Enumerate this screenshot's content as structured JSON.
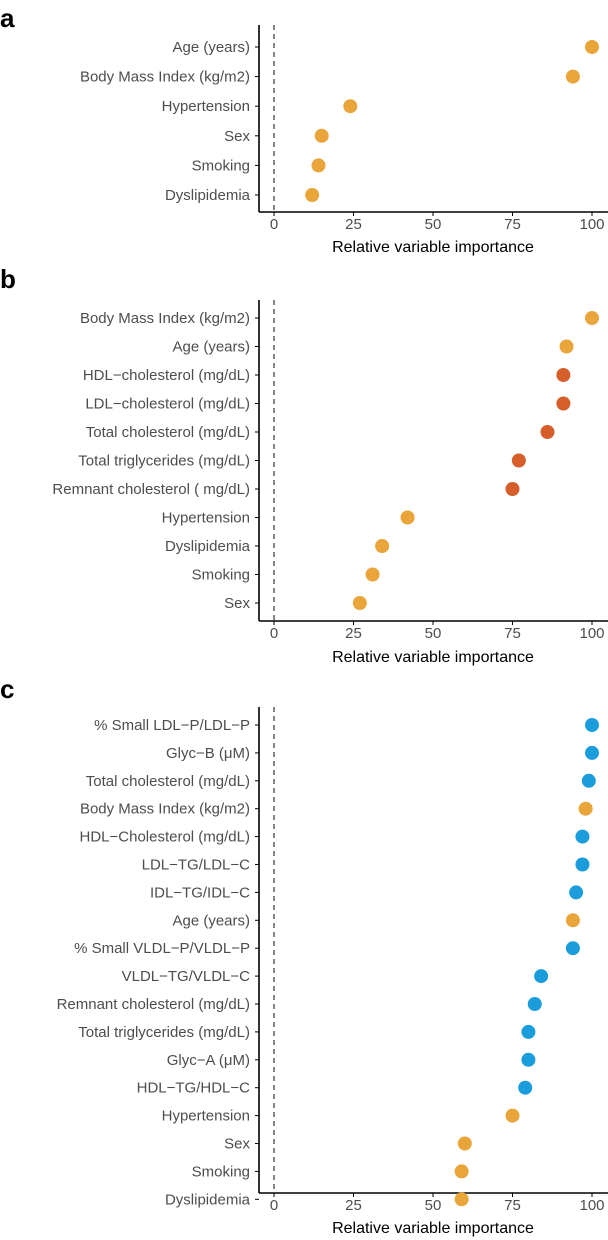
{
  "colors": {
    "demographic": "#E9A43A",
    "lipid": "#D55E2A",
    "nmr": "#1B9DDB"
  },
  "chart_data": [
    {
      "panel": "a",
      "type": "scatter",
      "xlabel": "Relative variable importance",
      "xlim": [
        0,
        100
      ],
      "xticks": [
        "0",
        "25",
        "50",
        "75",
        "100"
      ],
      "reference_line": 0,
      "points": [
        {
          "label": "Age (years)",
          "value": 100,
          "group": "demographic"
        },
        {
          "label": "Body Mass Index (kg/m2)",
          "value": 94,
          "group": "demographic"
        },
        {
          "label": "Hypertension",
          "value": 24,
          "group": "demographic"
        },
        {
          "label": "Sex",
          "value": 15,
          "group": "demographic"
        },
        {
          "label": "Smoking",
          "value": 14,
          "group": "demographic"
        },
        {
          "label": "Dyslipidemia",
          "value": 12,
          "group": "demographic"
        }
      ]
    },
    {
      "panel": "b",
      "type": "scatter",
      "xlabel": "Relative variable importance",
      "xlim": [
        0,
        100
      ],
      "xticks": [
        "0",
        "25",
        "50",
        "75",
        "100"
      ],
      "reference_line": 0,
      "points": [
        {
          "label": "Body Mass Index (kg/m2)",
          "value": 100,
          "group": "demographic"
        },
        {
          "label": "Age (years)",
          "value": 92,
          "group": "demographic"
        },
        {
          "label": "HDL−cholesterol (mg/dL)",
          "value": 91,
          "group": "lipid"
        },
        {
          "label": "LDL−cholesterol (mg/dL)",
          "value": 91,
          "group": "lipid"
        },
        {
          "label": "Total cholesterol (mg/dL)",
          "value": 86,
          "group": "lipid"
        },
        {
          "label": "Total triglycerides (mg/dL)",
          "value": 77,
          "group": "lipid"
        },
        {
          "label": "Remnant cholesterol ( mg/dL)",
          "value": 75,
          "group": "lipid"
        },
        {
          "label": "Hypertension",
          "value": 42,
          "group": "demographic"
        },
        {
          "label": "Dyslipidemia",
          "value": 34,
          "group": "demographic"
        },
        {
          "label": "Smoking",
          "value": 31,
          "group": "demographic"
        },
        {
          "label": "Sex",
          "value": 27,
          "group": "demographic"
        }
      ]
    },
    {
      "panel": "c",
      "type": "scatter",
      "xlabel": "Relative variable importance",
      "xlim": [
        0,
        100
      ],
      "xticks": [
        "0",
        "25",
        "50",
        "75",
        "100"
      ],
      "reference_line": 0,
      "points": [
        {
          "label": "% Small LDL−P/LDL−P",
          "value": 100,
          "group": "nmr"
        },
        {
          "label": "Glyc−B (μM)",
          "value": 100,
          "group": "nmr"
        },
        {
          "label": "Total cholesterol (mg/dL)",
          "value": 99,
          "group": "nmr"
        },
        {
          "label": "Body Mass Index (kg/m2)",
          "value": 98,
          "group": "demographic"
        },
        {
          "label": "HDL−Cholesterol (mg/dL)",
          "value": 97,
          "group": "nmr"
        },
        {
          "label": "LDL−TG/LDL−C",
          "value": 97,
          "group": "nmr"
        },
        {
          "label": "IDL−TG/IDL−C",
          "value": 95,
          "group": "nmr"
        },
        {
          "label": "Age (years)",
          "value": 94,
          "group": "demographic"
        },
        {
          "label": "% Small VLDL−P/VLDL−P",
          "value": 94,
          "group": "nmr"
        },
        {
          "label": "VLDL−TG/VLDL−C",
          "value": 84,
          "group": "nmr"
        },
        {
          "label": "Remnant cholesterol (mg/dL)",
          "value": 82,
          "group": "nmr"
        },
        {
          "label": "Total triglycerides (mg/dL)",
          "value": 80,
          "group": "nmr"
        },
        {
          "label": "Glyc−A (μM)",
          "value": 80,
          "group": "nmr"
        },
        {
          "label": "HDL−TG/HDL−C",
          "value": 79,
          "group": "nmr"
        },
        {
          "label": "Hypertension",
          "value": 75,
          "group": "demographic"
        },
        {
          "label": "Sex",
          "value": 60,
          "group": "demographic"
        },
        {
          "label": "Smoking",
          "value": 59,
          "group": "demographic"
        },
        {
          "label": "Dyslipidemia",
          "value": 59,
          "group": "demographic"
        }
      ]
    }
  ]
}
